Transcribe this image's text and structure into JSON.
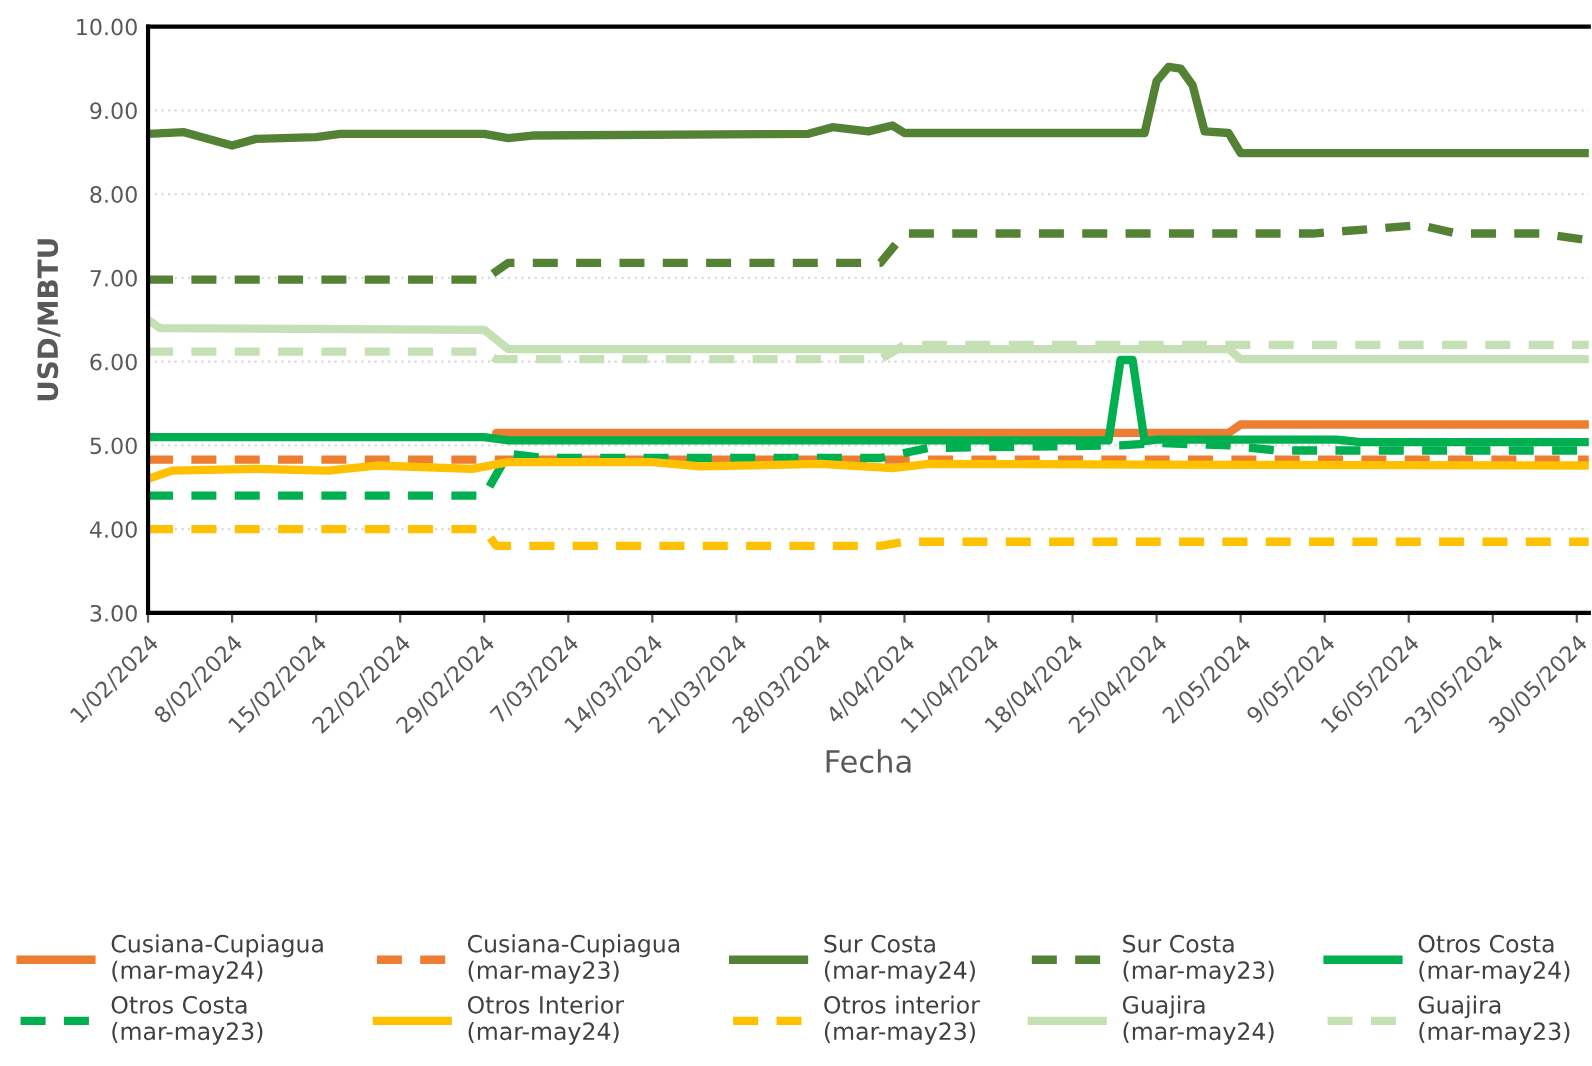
{
  "chart_data": {
    "type": "line",
    "xlabel": "Fecha",
    "ylabel": "USD/MBTU",
    "ylim": [
      3,
      10
    ],
    "yticks": [
      {
        "value": 3,
        "label": "3.00"
      },
      {
        "value": 4,
        "label": "4.00"
      },
      {
        "value": 5,
        "label": "5.00"
      },
      {
        "value": 6,
        "label": "6.00"
      },
      {
        "value": 7,
        "label": "7.00"
      },
      {
        "value": 8,
        "label": "8.00"
      },
      {
        "value": 9,
        "label": "9.00"
      },
      {
        "value": 10,
        "label": "10.00"
      }
    ],
    "xlim": [
      "2024-02-01",
      "2024-05-31"
    ],
    "xticks": [
      {
        "value": "2024-02-01",
        "label": "1/02/2024"
      },
      {
        "value": "2024-02-08",
        "label": "8/02/2024"
      },
      {
        "value": "2024-02-15",
        "label": "15/02/2024"
      },
      {
        "value": "2024-02-22",
        "label": "22/02/2024"
      },
      {
        "value": "2024-02-29",
        "label": "29/02/2024"
      },
      {
        "value": "2024-03-07",
        "label": "7/03/2024"
      },
      {
        "value": "2024-03-14",
        "label": "14/03/2024"
      },
      {
        "value": "2024-03-21",
        "label": "21/03/2024"
      },
      {
        "value": "2024-03-28",
        "label": "28/03/2024"
      },
      {
        "value": "2024-04-04",
        "label": "4/04/2024"
      },
      {
        "value": "2024-04-11",
        "label": "11/04/2024"
      },
      {
        "value": "2024-04-18",
        "label": "18/04/2024"
      },
      {
        "value": "2024-04-25",
        "label": "25/04/2024"
      },
      {
        "value": "2024-05-02",
        "label": "2/05/2024"
      },
      {
        "value": "2024-05-09",
        "label": "9/05/2024"
      },
      {
        "value": "2024-05-16",
        "label": "16/05/2024"
      },
      {
        "value": "2024-05-23",
        "label": "23/05/2024"
      },
      {
        "value": "2024-05-30",
        "label": "30/05/2024"
      }
    ],
    "grid": "y",
    "legend": "bottom",
    "marker": "none",
    "series": [
      {
        "name": "Cusiana-Cupiagua\n(mar-may24)",
        "color": "#ed7d31",
        "line_style": "solid",
        "x": [
          "2024-03-01",
          "2024-05-01",
          "2024-05-02",
          "2024-05-31"
        ],
        "values": [
          5.15,
          5.15,
          5.25,
          5.25
        ]
      },
      {
        "name": "Cusiana-Cupiagua\n(mar-may23)",
        "color": "#ed7d31",
        "line_style": "dashed",
        "x": [
          "2024-02-01",
          "2024-05-31"
        ],
        "values": [
          4.83,
          4.83
        ]
      },
      {
        "name": "Sur Costa\n(mar-may24)",
        "color": "#548235",
        "line_style": "solid",
        "x": [
          "2024-02-01",
          "2024-02-04",
          "2024-02-08",
          "2024-02-10",
          "2024-02-15",
          "2024-02-17",
          "2024-02-29",
          "2024-03-02",
          "2024-03-04",
          "2024-03-27",
          "2024-03-29",
          "2024-04-01",
          "2024-04-03",
          "2024-04-04",
          "2024-04-24",
          "2024-04-25",
          "2024-04-26",
          "2024-04-27",
          "2024-04-28",
          "2024-04-29",
          "2024-05-01",
          "2024-05-02",
          "2024-05-31"
        ],
        "values": [
          8.72,
          8.74,
          8.58,
          8.66,
          8.68,
          8.72,
          8.72,
          8.67,
          8.7,
          8.72,
          8.8,
          8.75,
          8.82,
          8.73,
          8.73,
          9.35,
          9.52,
          9.5,
          9.3,
          8.75,
          8.73,
          8.49,
          8.49
        ]
      },
      {
        "name": "Sur Costa\n(mar-may23)",
        "color": "#548235",
        "line_style": "dashed",
        "x": [
          "2024-02-01",
          "2024-02-29",
          "2024-03-02",
          "2024-04-02",
          "2024-04-04",
          "2024-05-08",
          "2024-05-17",
          "2024-05-20",
          "2024-05-27",
          "2024-05-31"
        ],
        "values": [
          6.98,
          6.98,
          7.18,
          7.18,
          7.53,
          7.53,
          7.63,
          7.53,
          7.53,
          7.45
        ]
      },
      {
        "name": "Otros Costa\n(mar-may24)",
        "color": "#00b050",
        "line_style": "solid",
        "x": [
          "2024-02-01",
          "2024-02-29",
          "2024-03-02",
          "2024-04-21",
          "2024-04-22",
          "2024-04-23",
          "2024-04-24",
          "2024-04-25",
          "2024-05-10",
          "2024-05-12",
          "2024-05-31"
        ],
        "values": [
          5.1,
          5.1,
          5.06,
          5.06,
          6.02,
          6.02,
          5.05,
          5.07,
          5.07,
          5.04,
          5.04
        ]
      },
      {
        "name": "Otros Costa\n(mar-may23)",
        "color": "#00b050",
        "line_style": "dashed",
        "x": [
          "2024-02-01",
          "2024-02-29",
          "2024-03-02",
          "2024-03-05",
          "2024-04-02",
          "2024-04-06",
          "2024-04-22",
          "2024-04-25",
          "2024-05-01",
          "2024-05-05",
          "2024-05-31"
        ],
        "values": [
          4.4,
          4.4,
          4.9,
          4.85,
          4.85,
          4.97,
          5.0,
          5.03,
          5.0,
          4.94,
          4.94
        ]
      },
      {
        "name": "Otros Interior\n(mar-may24)",
        "color": "#ffc000",
        "line_style": "solid",
        "x": [
          "2024-02-01",
          "2024-02-03",
          "2024-02-10",
          "2024-02-16",
          "2024-02-20",
          "2024-02-28",
          "2024-03-02",
          "2024-03-14",
          "2024-03-18",
          "2024-03-28",
          "2024-04-03",
          "2024-04-06",
          "2024-04-25",
          "2024-05-31"
        ],
        "values": [
          4.6,
          4.7,
          4.72,
          4.7,
          4.76,
          4.72,
          4.8,
          4.8,
          4.75,
          4.78,
          4.73,
          4.78,
          4.77,
          4.76
        ]
      },
      {
        "name": "Otros interior\n(mar-may23)",
        "color": "#ffc000",
        "line_style": "dashed",
        "x": [
          "2024-02-01",
          "2024-02-29",
          "2024-03-01",
          "2024-04-02",
          "2024-04-04",
          "2024-05-31"
        ],
        "values": [
          4.0,
          4.0,
          3.8,
          3.8,
          3.85,
          3.85
        ]
      },
      {
        "name": "Guajira\n(mar-may24)",
        "color": "#c5e0b4",
        "line_style": "solid",
        "x": [
          "2024-02-01",
          "2024-02-02",
          "2024-02-29",
          "2024-03-02",
          "2024-05-01",
          "2024-05-02",
          "2024-05-31"
        ],
        "values": [
          6.5,
          6.4,
          6.38,
          6.15,
          6.15,
          6.03,
          6.03
        ]
      },
      {
        "name": "Guajira\n(mar-may23)",
        "color": "#c5e0b4",
        "line_style": "dashed",
        "x": [
          "2024-02-01",
          "2024-02-29",
          "2024-03-01",
          "2024-04-02",
          "2024-04-04",
          "2024-05-31"
        ],
        "values": [
          6.12,
          6.12,
          6.03,
          6.03,
          6.2,
          6.2
        ]
      }
    ]
  }
}
